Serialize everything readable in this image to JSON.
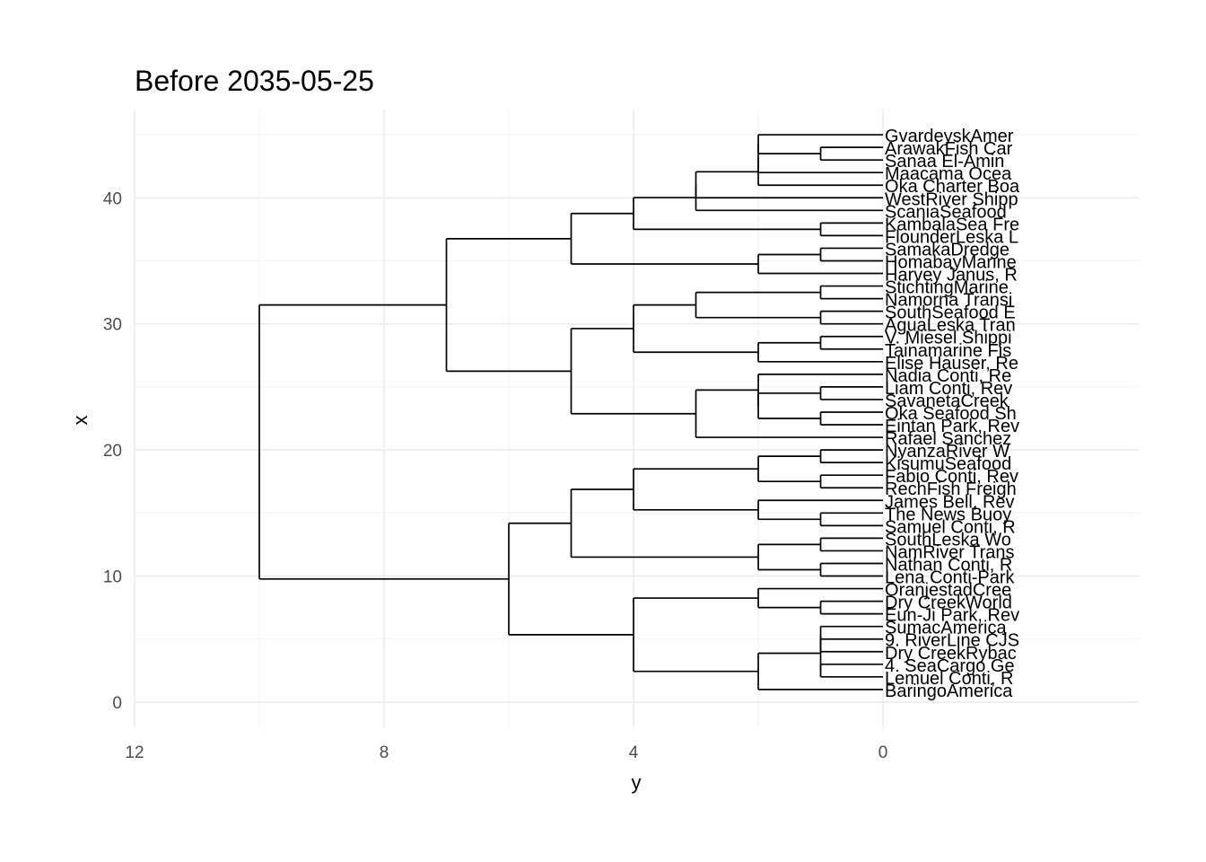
{
  "chart_data": {
    "type": "dendrogram",
    "title": "Before 2035-05-25",
    "xlabel": "y",
    "ylabel": "x",
    "orientation": "horizontal",
    "x_axis": {
      "ticks": [
        12,
        8,
        4,
        0
      ],
      "range": [
        12,
        -4.1
      ],
      "reversed": true
    },
    "y_axis": {
      "ticks": [
        0,
        10,
        20,
        30,
        40
      ],
      "range": [
        -2.0,
        47.0
      ]
    },
    "grid": true,
    "leaves": [
      "BaringoAmerica",
      "Lemuel Conti, R",
      "4. SeaCargo Ge",
      "Dry CreekRybac",
      "9. RiverLine CJS",
      "SumacAmerica",
      "Eun-Ji Park, Rev",
      "Dry CreekWorld",
      "OranjestadCree",
      "Lena Conti-Park",
      "Nathan Conti, R",
      "NamRiver Trans",
      "SouthLeska Wo",
      "Samuel Conti, R",
      "The News Buoy",
      "James Bell, Rev",
      "RechFish Freigh",
      "Fabio Conti, Rev",
      "KisumuSeafood",
      "NyanzaRiver W",
      "Rafael Sanchez",
      "Eintan Park, Rev",
      "Oka Seafood Sh",
      "SavanetaCreek",
      "Liam Conti, Rev",
      "Nadia Conti, Re",
      "Elise Hauser, Re",
      "Tainamarine Fis",
      "V. Miesel Shippi",
      "AguaLeska Tran",
      "SouthSeafood E",
      "Namorna Transi",
      "StichtingMarine",
      "Harvey Janus, R",
      "HomabayMarine",
      "SamakaDredge",
      "FlounderLeska L",
      "KambalaSea Fre",
      "ScaniaSeafood",
      "WestRiver Shipp",
      "Oka Charter Boa",
      "Maacama Ocea",
      "Sanaa El-Amin",
      "ArawakFish Car",
      "GvardeyskAmer"
    ],
    "merges": [
      {
        "left": "L1",
        "right": "L0",
        "height": 1
      },
      {
        "left": "L3",
        "right": "L2",
        "height": 2
      },
      {
        "left": "L5",
        "right": "L4",
        "height": 2
      },
      {
        "left": "L8",
        "right": "L7",
        "height": 1
      },
      {
        "left": "L11",
        "right": "L10",
        "height": 1
      },
      {
        "left": "L13",
        "right": "L12",
        "height": 1
      },
      {
        "left": "L15",
        "right": "L14",
        "height": 1
      },
      {
        "left": "L17",
        "right": "L16",
        "height": 1
      },
      {
        "left": "L19",
        "right": "L18",
        "height": 1
      },
      {
        "left": "L22",
        "right": "L21",
        "height": 1
      },
      {
        "left": "L24",
        "right": "L23",
        "height": 1
      },
      {
        "left": "L27",
        "right": "L26",
        "height": 1
      },
      {
        "left": "L29",
        "right": "L28",
        "height": 1
      },
      {
        "left": "L31",
        "right": "L30",
        "height": 1
      },
      {
        "left": "L34",
        "right": "L33",
        "height": 1
      },
      {
        "left": "L36",
        "right": "L35",
        "height": 1
      },
      {
        "left": "L43",
        "right": "L42",
        "height": 1
      },
      {
        "left": "L38",
        "right": "L37",
        "height": 1
      },
      {
        "left": "M0",
        "right": "M1",
        "height": 2
      },
      {
        "left": "M2",
        "right": "M18",
        "height": 2
      },
      {
        "left": "M3",
        "right": "L6",
        "height": 2
      },
      {
        "left": "M4",
        "right": "L9",
        "height": 2
      },
      {
        "left": "M5",
        "right": "M4x",
        "height": 2
      },
      {
        "left": "M6",
        "right": "M7",
        "height": 2
      },
      {
        "left": "M8",
        "right": "M9",
        "height": 2
      },
      {
        "left": "M10",
        "right": "L20",
        "height": 3
      },
      {
        "left": "M11",
        "right": "L25",
        "height": 2
      },
      {
        "left": "M12",
        "right": "M13",
        "height": 3
      },
      {
        "left": "M14",
        "right": "L32",
        "height": 2
      },
      {
        "left": "M15",
        "right": "M16",
        "height": 4
      },
      {
        "left": "M17",
        "right": "L39",
        "height": 2
      },
      {
        "left": "M19",
        "right": "L40",
        "height": 2
      },
      {
        "left": "M20",
        "right": "L44",
        "height": 2
      }
    ]
  }
}
